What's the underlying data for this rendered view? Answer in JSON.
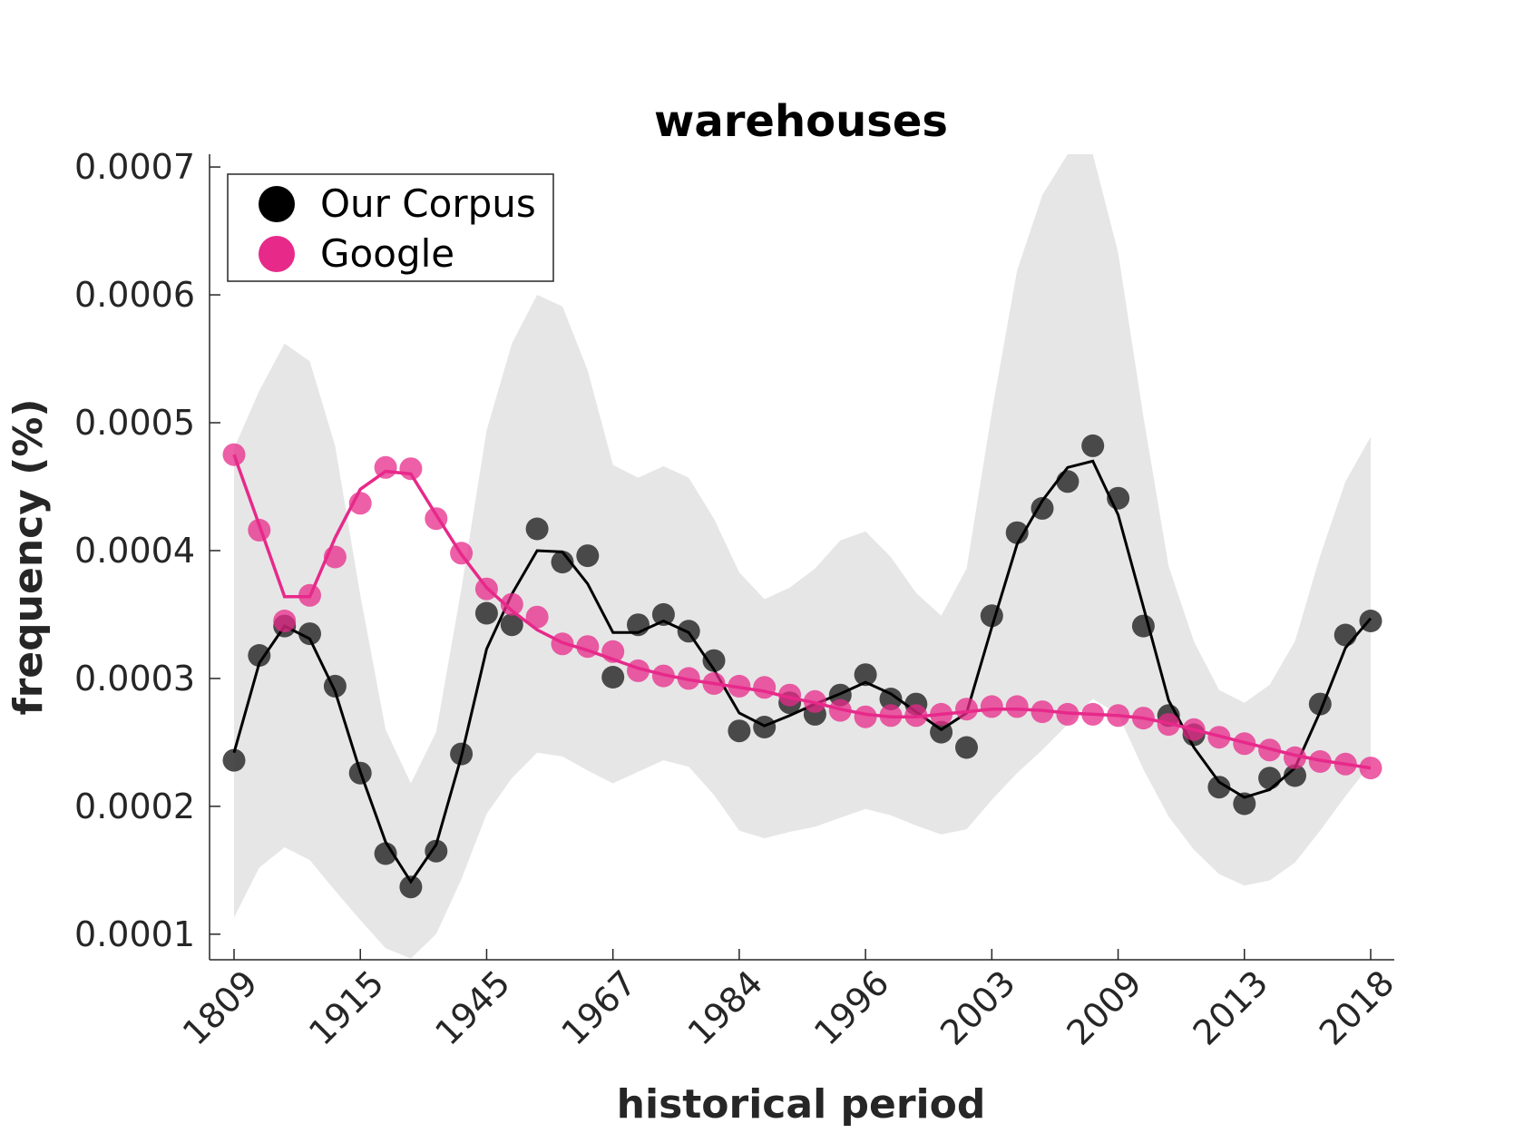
{
  "chart_data": {
    "type": "line",
    "title": "warehouses",
    "xlabel": "historical period",
    "ylabel": "frequency (%)",
    "ylim": [
      8e-05,
      0.00071
    ],
    "yticks": [
      "0.0001",
      "0.0002",
      "0.0003",
      "0.0004",
      "0.0005",
      "0.0006",
      "0.0007"
    ],
    "ytick_values": [
      0.0001,
      0.0002,
      0.0003,
      0.0004,
      0.0005,
      0.0006,
      0.0007
    ],
    "xticks": [
      "1809",
      "1915",
      "1945",
      "1967",
      "1984",
      "1996",
      "2003",
      "2009",
      "2013",
      "2018"
    ],
    "xtick_index": [
      0,
      5,
      10,
      15,
      20,
      25,
      30,
      35,
      40,
      45
    ],
    "num_points": 46,
    "legend_position": "top-left",
    "series": [
      {
        "name": "Our Corpus",
        "color": "#333333",
        "points": [
          0.000236,
          0.000318,
          0.000341,
          0.000335,
          0.000294,
          0.000226,
          0.000163,
          0.000137,
          0.000165,
          0.000241,
          0.000351,
          0.000342,
          0.000417,
          0.000391,
          0.000396,
          0.000301,
          0.000342,
          0.00035,
          0.000337,
          0.000314,
          0.000259,
          0.000262,
          0.000281,
          0.000272,
          0.000287,
          0.000303,
          0.000284,
          0.00028,
          0.000258,
          0.000246,
          0.000349,
          0.000414,
          0.000433,
          0.000454,
          0.000482,
          0.000441,
          0.000341,
          0.000271,
          0.000256,
          0.000215,
          0.000202,
          0.000222,
          0.000224,
          0.00028,
          0.000334,
          0.000345
        ],
        "smoothed": [
          0.000242,
          0.000312,
          0.000341,
          0.000331,
          0.00029,
          0.000227,
          0.000172,
          0.000141,
          0.00017,
          0.000239,
          0.000323,
          0.000366,
          0.0004,
          0.000399,
          0.000374,
          0.000336,
          0.000336,
          0.000345,
          0.000336,
          0.000307,
          0.000273,
          0.000263,
          0.000271,
          0.00028,
          0.000288,
          0.000297,
          0.000288,
          0.000274,
          0.00026,
          0.000273,
          0.00034,
          0.000405,
          0.000439,
          0.000465,
          0.00047,
          0.000428,
          0.000356,
          0.000283,
          0.000246,
          0.000219,
          0.000207,
          0.000213,
          0.00023,
          0.000274,
          0.000324,
          0.000347
        ]
      },
      {
        "name": "Google",
        "color": "#e7298a",
        "points": [
          0.000475,
          0.000416,
          0.000345,
          0.000365,
          0.000395,
          0.000437,
          0.000465,
          0.000464,
          0.000425,
          0.000398,
          0.00037,
          0.000358,
          0.000348,
          0.000327,
          0.000325,
          0.000321,
          0.000306,
          0.000302,
          0.0003,
          0.000296,
          0.000294,
          0.000293,
          0.000287,
          0.000282,
          0.000275,
          0.00027,
          0.000271,
          0.000271,
          0.000272,
          0.000276,
          0.000278,
          0.000278,
          0.000274,
          0.000272,
          0.000272,
          0.000271,
          0.000269,
          0.000264,
          0.00026,
          0.000254,
          0.000249,
          0.000244,
          0.000238,
          0.000235,
          0.000233,
          0.00023
        ],
        "smoothed": [
          0.000475,
          0.00042,
          0.000364,
          0.000364,
          0.00041,
          0.000448,
          0.000462,
          0.00046,
          0.000428,
          0.000397,
          0.000371,
          0.000353,
          0.000338,
          0.000328,
          0.000322,
          0.000315,
          0.000308,
          0.000303,
          0.000299,
          0.000296,
          0.000293,
          0.00029,
          0.000285,
          0.000281,
          0.000276,
          0.000272,
          0.00027,
          0.00027,
          0.000272,
          0.000274,
          0.000276,
          0.000276,
          0.000275,
          0.000273,
          0.000272,
          0.000271,
          0.000269,
          0.000265,
          0.00026,
          0.000255,
          0.00025,
          0.000245,
          0.00024,
          0.000236,
          0.000233,
          0.00023
        ]
      }
    ],
    "band": {
      "color": "#e6e6e6",
      "upper": [
        0.00048,
        0.000525,
        0.000562,
        0.000548,
        0.000482,
        0.000365,
        0.00026,
        0.000218,
        0.000258,
        0.00037,
        0.000494,
        0.000562,
        0.0006,
        0.000591,
        0.000541,
        0.000467,
        0.000457,
        0.000466,
        0.000457,
        0.000425,
        0.000383,
        0.000362,
        0.000371,
        0.000386,
        0.000408,
        0.000415,
        0.000395,
        0.000367,
        0.000349,
        0.000386,
        0.000508,
        0.000619,
        0.000678,
        0.00071,
        0.00071,
        0.000633,
        0.000505,
        0.000388,
        0.000329,
        0.000291,
        0.000281,
        0.000295,
        0.000329,
        0.000396,
        0.000454,
        0.000489
      ],
      "lower": [
        0.000113,
        0.000152,
        0.000168,
        0.000158,
        0.000134,
        0.000111,
        8.9e-05,
        8.1e-05,
        0.0001,
        0.000143,
        0.000194,
        0.000222,
        0.000242,
        0.000239,
        0.000228,
        0.000218,
        0.000227,
        0.000236,
        0.000231,
        0.000209,
        0.000181,
        0.000175,
        0.00018,
        0.000184,
        0.000191,
        0.000198,
        0.000193,
        0.000185,
        0.000178,
        0.000182,
        0.000205,
        0.000226,
        0.000244,
        0.000264,
        0.000284,
        0.000272,
        0.000229,
        0.000192,
        0.000166,
        0.000147,
        0.000138,
        0.000142,
        0.000156,
        0.000181,
        0.000208,
        0.000233
      ]
    }
  }
}
